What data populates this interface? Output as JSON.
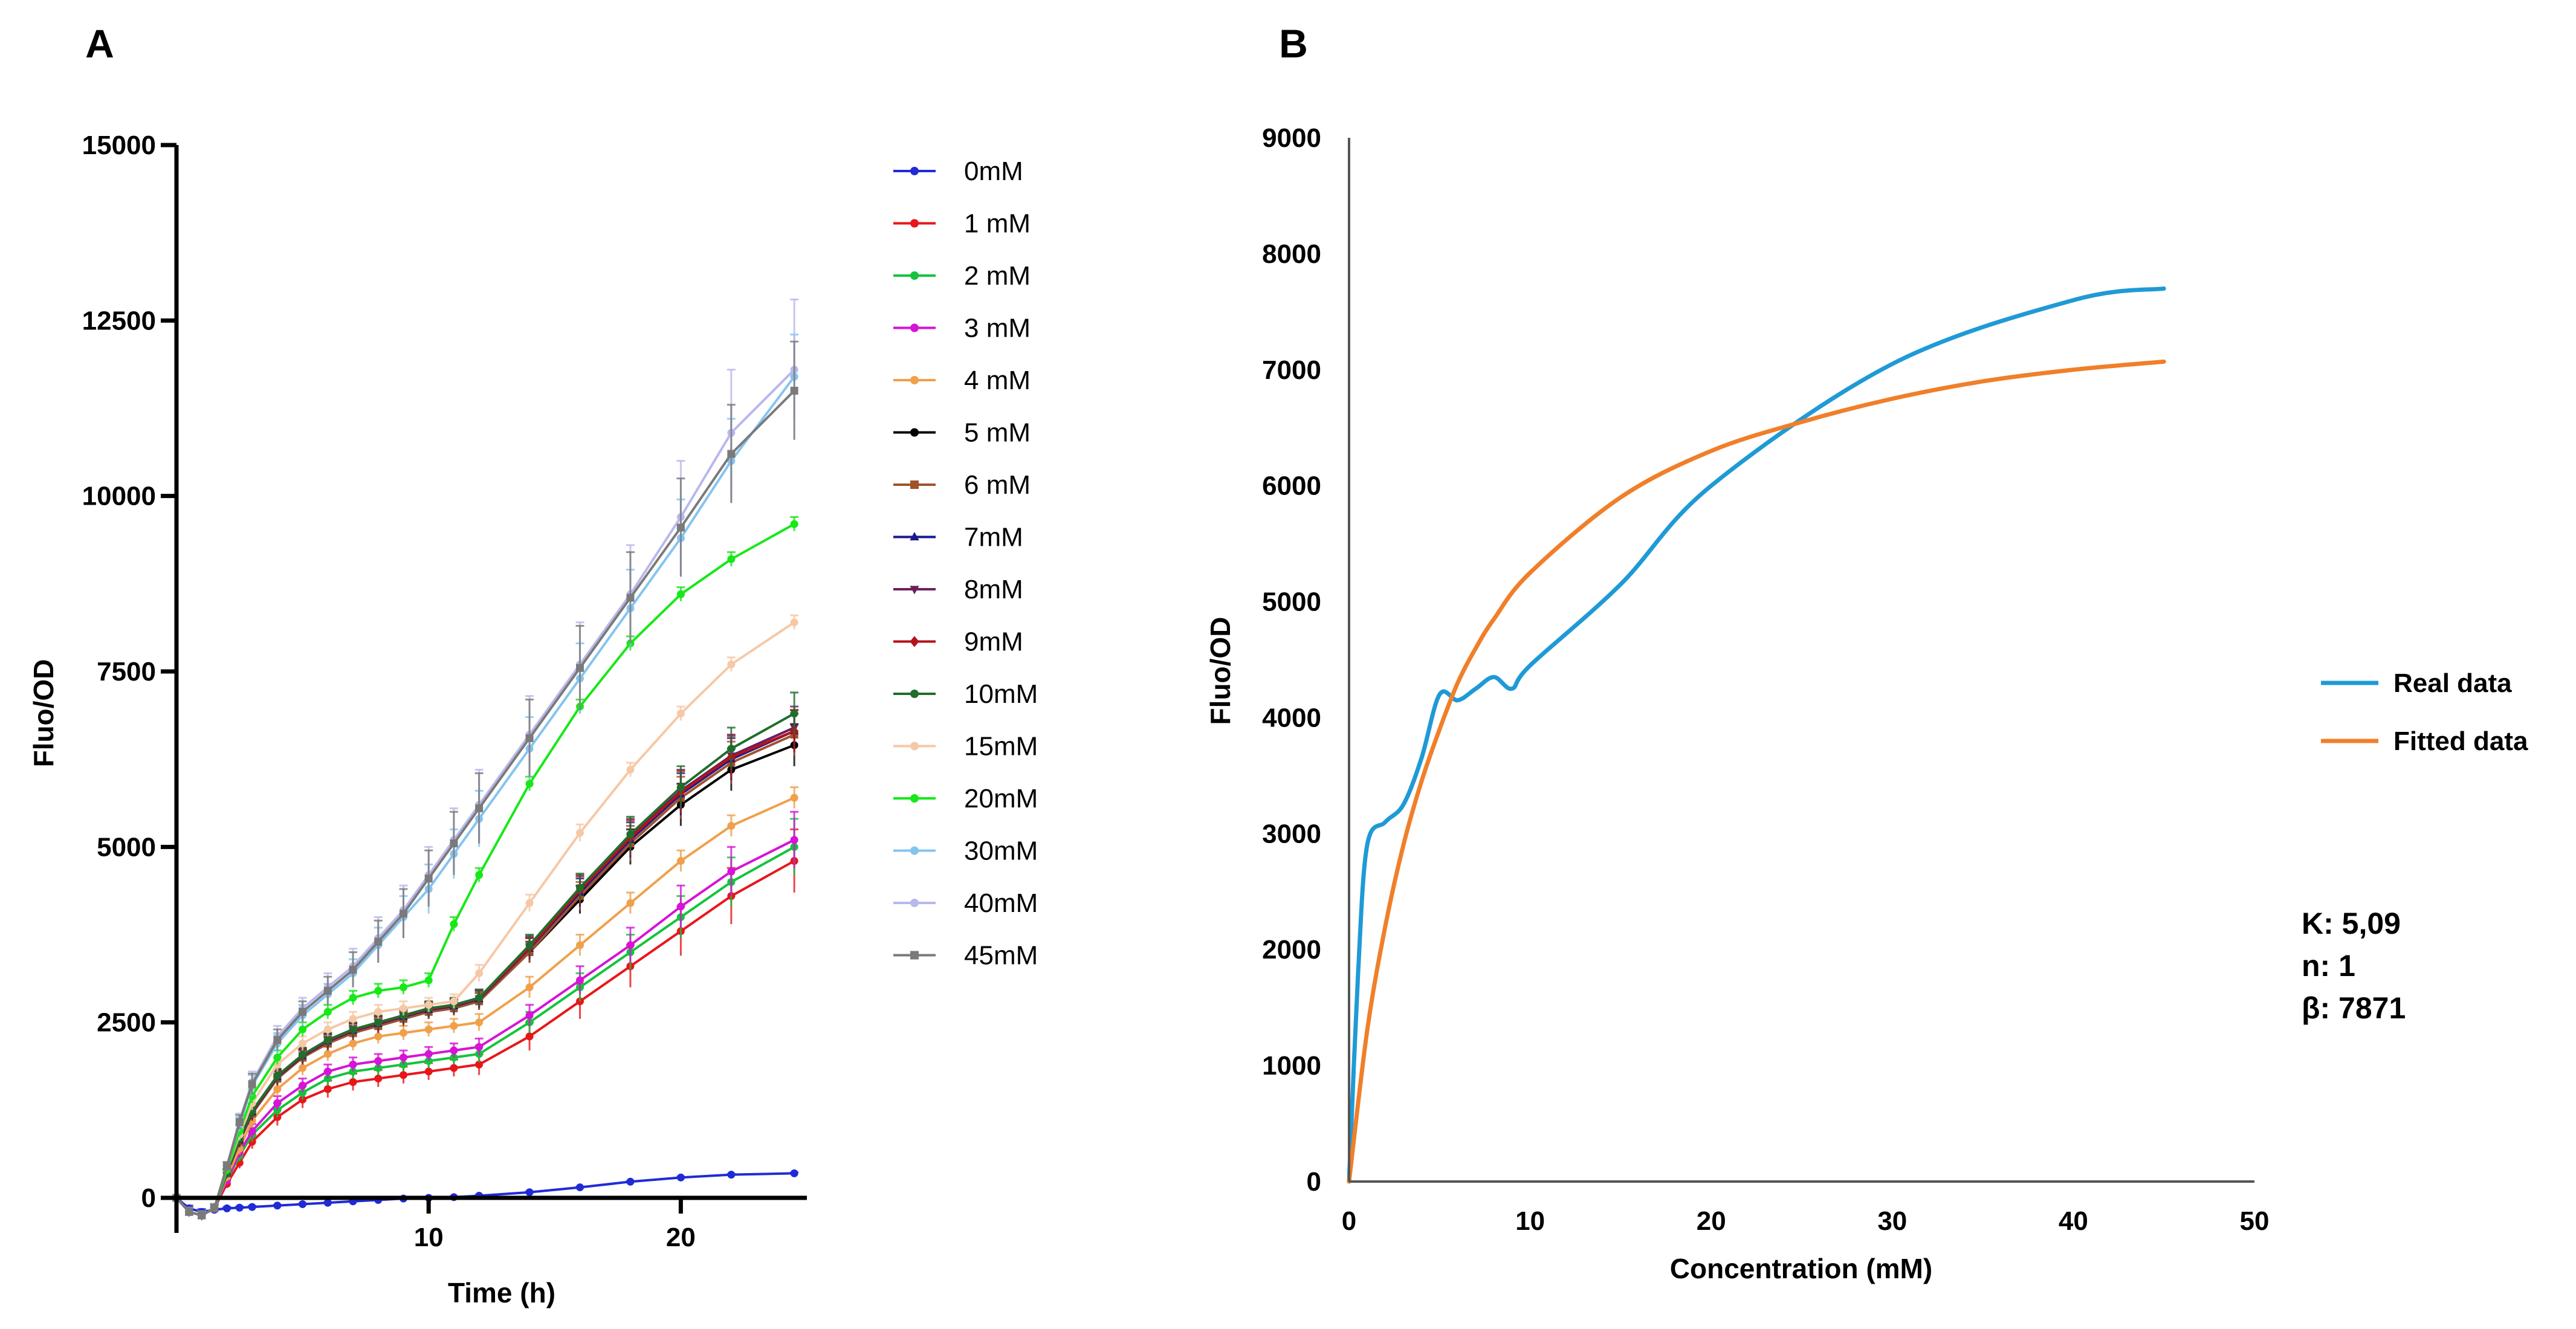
{
  "chart_data": [
    {
      "panel": "A",
      "type": "line",
      "xlabel": "Time (h)",
      "ylabel": "Fluo/OD",
      "xlim": [
        0,
        25
      ],
      "ylim": [
        -500,
        15000
      ],
      "xticks": [
        10,
        20
      ],
      "yticks": [
        0,
        2500,
        5000,
        7500,
        10000,
        12500,
        15000
      ],
      "yticklabels": [
        "0",
        "2500",
        "5000",
        "7500",
        "10000",
        "12500",
        "15000"
      ],
      "x_points": [
        0,
        0.5,
        1,
        1.5,
        2,
        2.5,
        3,
        4,
        5,
        6,
        7,
        8,
        9,
        10,
        11,
        12,
        14,
        16,
        18,
        20,
        22,
        24.5
      ],
      "legend_position": "right",
      "series": [
        {
          "name": "0mM",
          "color": "#1f2bd6",
          "marker": "circle",
          "values": [
            0,
            -150,
            -200,
            -170,
            -150,
            -140,
            -130,
            -110,
            -90,
            -70,
            -50,
            -30,
            -10,
            0,
            10,
            30,
            80,
            150,
            230,
            290,
            330,
            350
          ],
          "err": [
            0,
            40,
            40,
            30,
            20,
            15,
            15,
            10,
            10,
            10,
            10,
            10,
            10,
            10,
            10,
            10,
            10,
            10,
            10,
            10,
            10,
            10
          ]
        },
        {
          "name": "1 mM",
          "color": "#e8161a",
          "marker": "circle",
          "values": [
            0,
            -200,
            -250,
            -150,
            200,
            500,
            800,
            1150,
            1400,
            1550,
            1650,
            1700,
            1750,
            1800,
            1850,
            1900,
            2300,
            2800,
            3300,
            3800,
            4300,
            4800
          ],
          "err": [
            0,
            60,
            60,
            60,
            60,
            80,
            100,
            120,
            120,
            120,
            120,
            120,
            120,
            120,
            120,
            150,
            200,
            250,
            300,
            350,
            400,
            450
          ]
        },
        {
          "name": "2 mM",
          "color": "#13c43c",
          "marker": "circle",
          "values": [
            0,
            -200,
            -250,
            -150,
            250,
            600,
            900,
            1250,
            1500,
            1700,
            1800,
            1850,
            1900,
            1950,
            2000,
            2050,
            2500,
            3000,
            3500,
            4000,
            4500,
            5000
          ],
          "err": [
            0,
            60,
            60,
            60,
            60,
            80,
            100,
            100,
            100,
            100,
            100,
            100,
            100,
            100,
            100,
            120,
            150,
            200,
            250,
            300,
            350,
            400
          ]
        },
        {
          "name": "3 mM",
          "color": "#d613d6",
          "marker": "circle",
          "values": [
            0,
            -200,
            -250,
            -150,
            250,
            650,
            950,
            1350,
            1600,
            1800,
            1900,
            1950,
            2000,
            2050,
            2100,
            2150,
            2600,
            3100,
            3600,
            4150,
            4650,
            5100
          ],
          "err": [
            0,
            60,
            60,
            60,
            60,
            80,
            100,
            100,
            100,
            100,
            100,
            100,
            100,
            100,
            100,
            120,
            150,
            200,
            250,
            300,
            350,
            400
          ]
        },
        {
          "name": "4 mM",
          "color": "#f0a04b",
          "marker": "circle",
          "values": [
            0,
            -200,
            -250,
            -150,
            300,
            700,
            1100,
            1550,
            1850,
            2050,
            2200,
            2300,
            2350,
            2400,
            2450,
            2500,
            3000,
            3600,
            4200,
            4800,
            5300,
            5700
          ],
          "err": [
            0,
            60,
            60,
            60,
            60,
            80,
            100,
            100,
            100,
            100,
            100,
            100,
            100,
            100,
            100,
            120,
            150,
            150,
            150,
            150,
            150,
            150
          ]
        },
        {
          "name": "5 mM",
          "color": "#000000",
          "marker": "circle",
          "values": [
            0,
            -200,
            -250,
            -150,
            350,
            800,
            1200,
            1700,
            2000,
            2200,
            2350,
            2450,
            2550,
            2650,
            2700,
            2800,
            3500,
            4250,
            5000,
            5600,
            6100,
            6450
          ],
          "err": [
            0,
            60,
            60,
            60,
            60,
            80,
            100,
            100,
            100,
            100,
            100,
            100,
            100,
            100,
            100,
            120,
            150,
            200,
            250,
            300,
            300,
            300
          ]
        },
        {
          "name": "6 mM",
          "color": "#a0522d",
          "marker": "square",
          "values": [
            0,
            -200,
            -250,
            -150,
            350,
            800,
            1200,
            1700,
            2000,
            2200,
            2350,
            2450,
            2550,
            2650,
            2700,
            2800,
            3500,
            4300,
            5050,
            5700,
            6200,
            6600
          ],
          "err": [
            0,
            60,
            60,
            60,
            60,
            80,
            100,
            100,
            100,
            100,
            100,
            100,
            100,
            100,
            100,
            120,
            150,
            200,
            250,
            300,
            300,
            300
          ]
        },
        {
          "name": "7mM",
          "color": "#1a1a8c",
          "marker": "triangle",
          "values": [
            0,
            -200,
            -250,
            -150,
            350,
            820,
            1220,
            1720,
            2020,
            2230,
            2380,
            2480,
            2580,
            2680,
            2730,
            2830,
            3550,
            4350,
            5100,
            5750,
            6250,
            6650
          ],
          "err": [
            0,
            60,
            60,
            60,
            60,
            80,
            100,
            100,
            100,
            100,
            100,
            100,
            100,
            100,
            100,
            120,
            150,
            200,
            250,
            300,
            300,
            300
          ]
        },
        {
          "name": "8mM",
          "color": "#6b1f5e",
          "marker": "triangle-down",
          "values": [
            0,
            -200,
            -250,
            -150,
            350,
            830,
            1230,
            1730,
            2030,
            2240,
            2390,
            2490,
            2590,
            2690,
            2740,
            2840,
            3580,
            4400,
            5150,
            5800,
            6300,
            6700
          ],
          "err": [
            0,
            60,
            60,
            60,
            60,
            80,
            100,
            100,
            100,
            100,
            100,
            100,
            100,
            100,
            100,
            120,
            150,
            200,
            250,
            300,
            300,
            300
          ]
        },
        {
          "name": "9mM",
          "color": "#b5121b",
          "marker": "diamond",
          "values": [
            0,
            -200,
            -250,
            -150,
            350,
            830,
            1230,
            1730,
            2030,
            2240,
            2390,
            2490,
            2590,
            2690,
            2740,
            2840,
            3560,
            4380,
            5130,
            5780,
            6280,
            6650
          ],
          "err": [
            0,
            60,
            60,
            60,
            60,
            80,
            100,
            100,
            100,
            100,
            100,
            100,
            100,
            100,
            100,
            120,
            150,
            200,
            250,
            300,
            300,
            300
          ]
        },
        {
          "name": "10mM",
          "color": "#1f6e2c",
          "marker": "circle",
          "values": [
            0,
            -200,
            -250,
            -150,
            350,
            840,
            1240,
            1740,
            2040,
            2250,
            2400,
            2500,
            2600,
            2700,
            2750,
            2850,
            3600,
            4420,
            5180,
            5850,
            6400,
            6900
          ],
          "err": [
            0,
            60,
            60,
            60,
            60,
            80,
            100,
            100,
            100,
            100,
            100,
            100,
            100,
            100,
            100,
            120,
            150,
            200,
            250,
            300,
            300,
            300
          ]
        },
        {
          "name": "15mM",
          "color": "#f6c8a6",
          "marker": "circle",
          "values": [
            0,
            -200,
            -250,
            -150,
            400,
            900,
            1350,
            1900,
            2200,
            2400,
            2550,
            2650,
            2700,
            2750,
            2800,
            3200,
            4200,
            5200,
            6100,
            6900,
            7600,
            8200
          ],
          "err": [
            0,
            60,
            60,
            60,
            60,
            80,
            100,
            100,
            100,
            100,
            100,
            100,
            100,
            100,
            100,
            120,
            120,
            120,
            100,
            100,
            100,
            100
          ]
        },
        {
          "name": "20mM",
          "color": "#17e817",
          "marker": "circle",
          "values": [
            0,
            -200,
            -250,
            -150,
            400,
            950,
            1450,
            2000,
            2400,
            2650,
            2850,
            2950,
            3000,
            3100,
            3900,
            4600,
            5900,
            7000,
            7900,
            8600,
            9100,
            9600
          ],
          "err": [
            0,
            60,
            60,
            60,
            60,
            80,
            100,
            100,
            100,
            100,
            100,
            100,
            100,
            100,
            100,
            100,
            100,
            100,
            100,
            100,
            100,
            100
          ]
        },
        {
          "name": "30mM",
          "color": "#84c4f0",
          "marker": "circle",
          "values": [
            0,
            -200,
            -250,
            -150,
            450,
            1050,
            1600,
            2200,
            2600,
            2900,
            3200,
            3600,
            4000,
            4400,
            4900,
            5400,
            6400,
            7400,
            8400,
            9400,
            10500,
            11700
          ],
          "err": [
            0,
            60,
            60,
            60,
            60,
            100,
            150,
            150,
            150,
            150,
            200,
            250,
            300,
            350,
            350,
            400,
            450,
            500,
            550,
            550,
            600,
            600
          ]
        },
        {
          "name": "40mM",
          "color": "#b8b8ec",
          "marker": "circle",
          "values": [
            0,
            -200,
            -250,
            -150,
            450,
            1100,
            1650,
            2300,
            2700,
            3000,
            3300,
            3700,
            4100,
            4600,
            5100,
            5600,
            6600,
            7600,
            8600,
            9700,
            10900,
            11800
          ],
          "err": [
            0,
            60,
            60,
            60,
            60,
            100,
            150,
            150,
            150,
            200,
            250,
            300,
            350,
            400,
            450,
            500,
            550,
            600,
            700,
            800,
            900,
            1000
          ]
        },
        {
          "name": "45mM",
          "color": "#7a7a7a",
          "marker": "square",
          "values": [
            0,
            -200,
            -250,
            -150,
            450,
            1080,
            1620,
            2250,
            2650,
            2950,
            3250,
            3650,
            4050,
            4550,
            5050,
            5550,
            6550,
            7550,
            8550,
            9550,
            10600,
            11500
          ],
          "err": [
            0,
            60,
            60,
            60,
            60,
            100,
            150,
            150,
            150,
            200,
            250,
            300,
            350,
            400,
            450,
            500,
            550,
            600,
            650,
            700,
            700,
            700
          ]
        }
      ]
    },
    {
      "panel": "B",
      "type": "line",
      "xlabel": "Concentration (mM)",
      "ylabel": "Fluo/OD",
      "xlim": [
        0,
        50
      ],
      "ylim": [
        0,
        9000
      ],
      "xticks": [
        0,
        10,
        20,
        30,
        40,
        50
      ],
      "yticks": [
        0,
        1000,
        2000,
        3000,
        4000,
        5000,
        6000,
        7000,
        8000,
        9000
      ],
      "legend_position": "right",
      "series": [
        {
          "name": "Real data",
          "color": "#1f9ad6",
          "x": [
            0,
            0.5,
            1,
            2,
            3,
            4,
            5,
            6,
            7,
            8,
            9,
            10,
            15,
            20,
            30,
            40,
            45
          ],
          "values": [
            0,
            1800,
            2900,
            3100,
            3250,
            3650,
            4200,
            4150,
            4250,
            4350,
            4250,
            4450,
            5150,
            6000,
            7050,
            7600,
            7700
          ]
        },
        {
          "name": "Fitted data",
          "color": "#f07f2a",
          "x": [
            0,
            1,
            2,
            3,
            4,
            5,
            6,
            7,
            8,
            10,
            15,
            20,
            25,
            30,
            35,
            40,
            45
          ],
          "values": [
            0,
            1300,
            2200,
            2900,
            3450,
            3900,
            4300,
            4600,
            4850,
            5250,
            5900,
            6300,
            6550,
            6750,
            6900,
            7000,
            7070
          ]
        }
      ],
      "params": {
        "K": "K: 5,09",
        "n": "n: 1",
        "beta": "β: 7871"
      }
    }
  ]
}
